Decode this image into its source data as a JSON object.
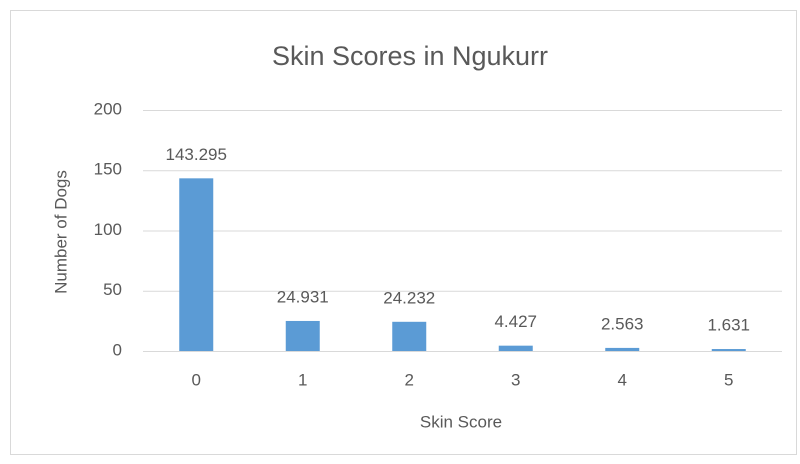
{
  "chart_data": {
    "type": "bar",
    "title": "Skin Scores in Ngukurr",
    "x_label": "Skin Score",
    "y_label": "Number of Dogs",
    "categories": [
      "0",
      "1",
      "2",
      "3",
      "4",
      "5"
    ],
    "values": [
      143.295,
      24.931,
      24.232,
      4.427,
      2.563,
      1.631
    ],
    "color": "#5b9bd5",
    "ylim": [
      0,
      200
    ],
    "yticks": [
      0,
      50,
      100,
      150,
      200
    ],
    "grid": true
  }
}
